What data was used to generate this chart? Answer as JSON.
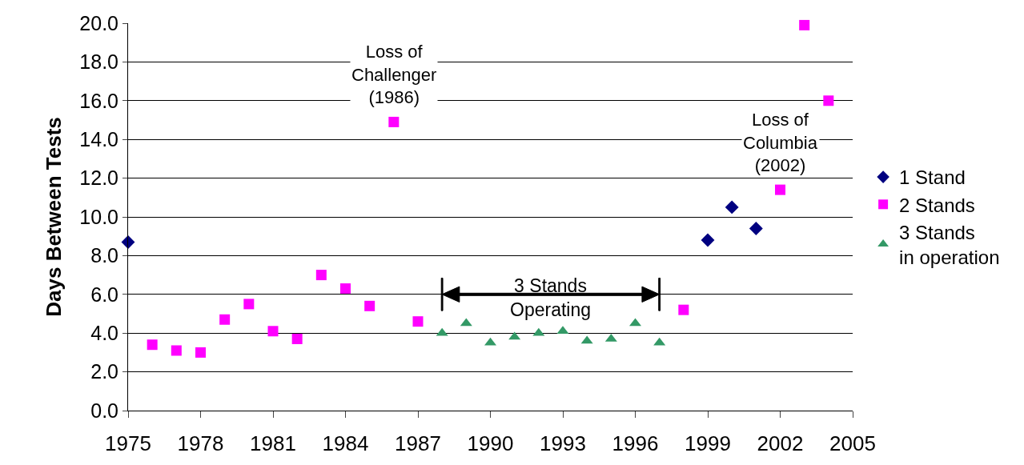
{
  "chart_data": {
    "type": "scatter",
    "ylabel": "Days Between Tests",
    "xlim": [
      1975,
      2005
    ],
    "xticks": [
      1975,
      1978,
      1981,
      1984,
      1987,
      1990,
      1993,
      1996,
      1999,
      2002,
      2005
    ],
    "ylim": [
      0,
      20
    ],
    "yticks": [
      {
        "value": 0,
        "label": "0.0"
      },
      {
        "value": 2,
        "label": "2.0"
      },
      {
        "value": 4,
        "label": "4.0"
      },
      {
        "value": 6,
        "label": "6.0"
      },
      {
        "value": 8,
        "label": "8.0"
      },
      {
        "value": 10,
        "label": "10.0"
      },
      {
        "value": 12,
        "label": "12.0"
      },
      {
        "value": 14,
        "label": "14.0"
      },
      {
        "value": 16,
        "label": "16.0"
      },
      {
        "value": 18,
        "label": "18.0"
      },
      {
        "value": 20,
        "label": "20.0"
      }
    ],
    "grid": "y",
    "legend": "right",
    "series": [
      {
        "name": "1 Stand",
        "color": "#000080",
        "marker": "diamond",
        "x": [
          1975,
          1999,
          2000,
          2001
        ],
        "values": [
          8.7,
          8.8,
          10.5,
          9.4
        ]
      },
      {
        "name": "2 Stands",
        "color": "#ff00ff",
        "marker": "square",
        "x": [
          1976,
          1977,
          1978,
          1979,
          1980,
          1981,
          1982,
          1983,
          1984,
          1985,
          1986,
          1987,
          1998,
          2002,
          2003,
          2004
        ],
        "values": [
          3.4,
          3.1,
          3.0,
          4.7,
          5.5,
          4.1,
          3.7,
          7.0,
          6.3,
          5.4,
          14.9,
          4.6,
          5.2,
          11.4,
          19.9,
          16.0
        ]
      },
      {
        "name": "3 Stands\nin operation",
        "color": "#339966",
        "marker": "triangle",
        "x": [
          1988,
          1989,
          1990,
          1991,
          1992,
          1993,
          1994,
          1995,
          1996,
          1997
        ],
        "values": [
          4.0,
          4.5,
          3.5,
          3.8,
          4.0,
          4.1,
          3.6,
          3.7,
          4.5,
          3.5
        ]
      }
    ],
    "annotations": [
      {
        "text": "Loss of\nChallenger\n(1986)",
        "x": 1986,
        "y": 14.9
      },
      {
        "text": "Loss of\nColumbia\n(2002)",
        "x": 2002,
        "y": 11.4
      },
      "3 Stands\nOperating"
    ]
  }
}
